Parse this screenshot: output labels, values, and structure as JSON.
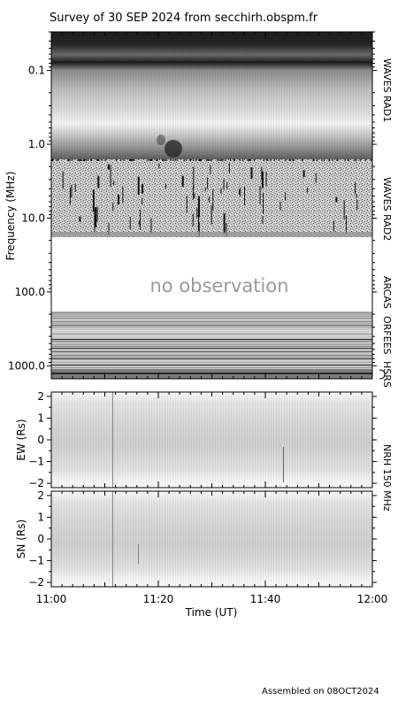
{
  "chart_data": {
    "type": "heatmap",
    "title": "Survey of 30 SEP 2024 from secchirh.obspm.fr",
    "footer": "Assembled on 08OCT2024",
    "xlabel": "Time (UT)",
    "x_ticks": [
      "11:00",
      "11:20",
      "11:40",
      "12:00"
    ],
    "xlim": [
      "11:00",
      "12:00"
    ],
    "panels": [
      {
        "name": "spectrogram",
        "ylabel": "Frequency (MHz)",
        "y_scale": "log",
        "ylim": [
          0.03,
          1500
        ],
        "y_ticks": [
          "0.1",
          "1.0",
          "10.0",
          "100.0",
          "1000.0"
        ],
        "instruments": [
          {
            "label": "WAVES RAD1",
            "range_mhz": [
              0.03,
              1.0
            ]
          },
          {
            "label": "WAVES RAD2",
            "range_mhz": [
              1.0,
              13.5
            ]
          },
          {
            "label": "ARCAS",
            "range_mhz": [
              13.5,
              180
            ]
          },
          {
            "label": "ORFEES",
            "range_mhz": [
              180,
              1000
            ]
          },
          {
            "label": "HSRS",
            "range_mhz": [
              1000,
              1500
            ]
          }
        ],
        "annotation": "no observation"
      },
      {
        "name": "ew",
        "ylabel": "EW (Rs)",
        "ylim": [
          -2.2,
          2.2
        ],
        "y_ticks": [
          "2",
          "1",
          "0",
          "−1",
          "−2"
        ]
      },
      {
        "name": "sn",
        "ylabel": "SN (Rs)",
        "ylim": [
          -2.2,
          2.2
        ],
        "y_ticks": [
          "2",
          "1",
          "0",
          "−1",
          "−2"
        ]
      }
    ],
    "nrh_label": "NRH 150 MHz"
  }
}
